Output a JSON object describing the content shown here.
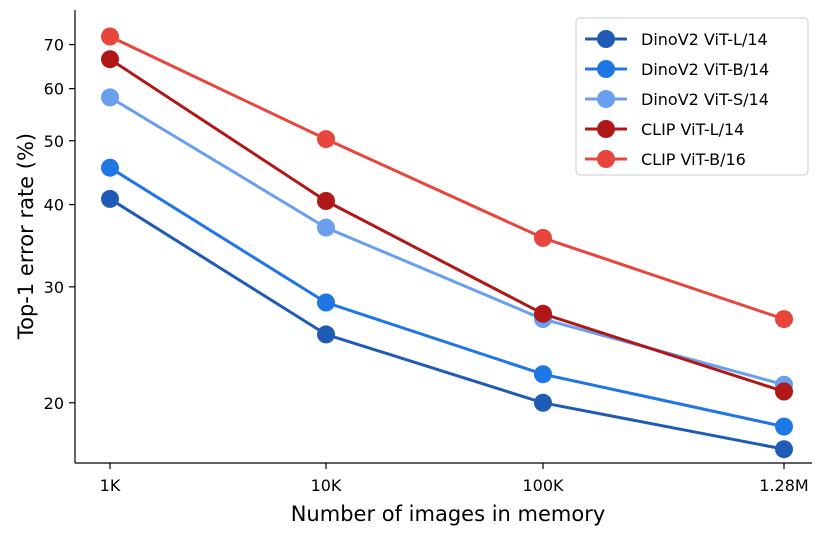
{
  "chart_data": {
    "type": "line",
    "title": "",
    "xlabel": "Number of images in memory",
    "ylabel": "Top-1 error rate (%)",
    "x_scale": "log",
    "y_scale": "log",
    "categories": [
      "1K",
      "10K",
      "100K",
      "1.28M"
    ],
    "x": [
      1000,
      10000,
      100000,
      1280000
    ],
    "ylim": [
      16.2,
      79
    ],
    "yticks": [
      20,
      30,
      40,
      50,
      60,
      70
    ],
    "ytick_labels": [
      "20",
      "30",
      "40",
      "50",
      "60",
      "70"
    ],
    "grid": false,
    "legend_position": "top-right",
    "series": [
      {
        "name": "DinoV2 ViT-L/14",
        "color": "#1f5bb5",
        "values": [
          40.8,
          25.4,
          20.0,
          17.0
        ]
      },
      {
        "name": "DinoV2 ViT-B/14",
        "color": "#1f77e6",
        "values": [
          45.5,
          28.4,
          22.1,
          18.4
        ]
      },
      {
        "name": "DinoV2 ViT-S/14",
        "color": "#6a9ff0",
        "values": [
          58.2,
          36.9,
          26.8,
          21.3
        ]
      },
      {
        "name": "CLIP ViT-L/14",
        "color": "#b01818",
        "values": [
          66.5,
          40.5,
          27.3,
          20.8
        ]
      },
      {
        "name": "CLIP ViT-B/16",
        "color": "#e8453c",
        "values": [
          72.0,
          50.3,
          35.6,
          26.8
        ]
      }
    ]
  }
}
